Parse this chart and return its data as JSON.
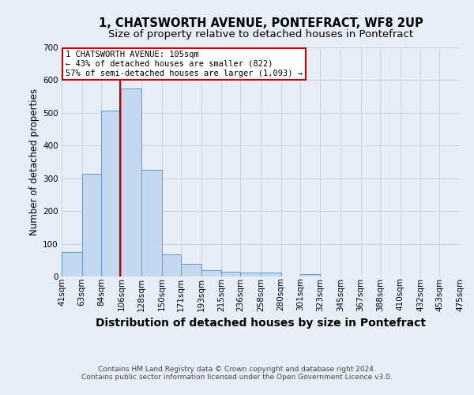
{
  "title": "1, CHATSWORTH AVENUE, PONTEFRACT, WF8 2UP",
  "subtitle": "Size of property relative to detached houses in Pontefract",
  "xlabel": "Distribution of detached houses by size in Pontefract",
  "ylabel": "Number of detached properties",
  "categories": [
    "41sqm",
    "63sqm",
    "84sqm",
    "106sqm",
    "128sqm",
    "150sqm",
    "171sqm",
    "193sqm",
    "215sqm",
    "236sqm",
    "258sqm",
    "280sqm",
    "301sqm",
    "323sqm",
    "345sqm",
    "367sqm",
    "388sqm",
    "410sqm",
    "432sqm",
    "453sqm",
    "475sqm"
  ],
  "values": [
    75,
    313,
    507,
    575,
    327,
    68,
    38,
    20,
    14,
    12,
    13,
    0,
    8,
    0,
    0,
    0,
    0,
    0,
    0,
    0,
    0
  ],
  "bar_color": "#c5d8f0",
  "bar_edge_color": "#5b9bd5",
  "grid_color": "#c8d4e4",
  "bg_color": "#e8eef8",
  "annotation_box_text": "1 CHATSWORTH AVENUE: 105sqm\n← 43% of detached houses are smaller (822)\n57% of semi-detached houses are larger (1,093) →",
  "annotation_box_color": "#ffffff",
  "annotation_box_edge_color": "#cc0000",
  "property_line_x": 105,
  "bin_edges": [
    41,
    63,
    84,
    106,
    128,
    150,
    171,
    193,
    215,
    236,
    258,
    280,
    301,
    323,
    345,
    367,
    388,
    410,
    432,
    453,
    475
  ],
  "ylim": [
    0,
    700
  ],
  "yticks": [
    0,
    100,
    200,
    300,
    400,
    500,
    600,
    700
  ],
  "footer1": "Contains HM Land Registry data © Crown copyright and database right 2024.",
  "footer2": "Contains public sector information licensed under the Open Government Licence v3.0.",
  "title_fontsize": 10.5,
  "subtitle_fontsize": 9.5,
  "xlabel_fontsize": 10,
  "ylabel_fontsize": 8.5,
  "tick_fontsize": 7.5,
  "footer_fontsize": 6.5,
  "annotation_fontsize": 7.5
}
